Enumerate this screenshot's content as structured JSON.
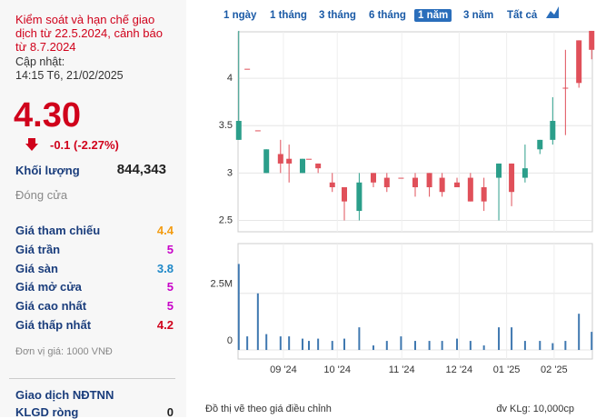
{
  "panel": {
    "warning": "Kiểm soát và hạn chế giao dịch từ 22.5.2024, cảnh báo từ 8.7.2024",
    "updated_label": "Cập nhật:",
    "updated_time": "14:15 T6, 21/02/2025",
    "price": "4.30",
    "change": "-0.1 (-2.27%)",
    "volume_label": "Khối lượng",
    "volume": "844,343",
    "close_label": "Đóng cửa",
    "rows": [
      {
        "label": "Giá tham chiếu",
        "value": "4.4",
        "color": "#f39c12"
      },
      {
        "label": "Giá trần",
        "value": "5",
        "color": "#c800c8"
      },
      {
        "label": "Giá sàn",
        "value": "3.8",
        "color": "#1e88c8"
      },
      {
        "label": "Giá mở cửa",
        "value": "5",
        "color": "#c800c8"
      },
      {
        "label": "Giá cao nhất",
        "value": "5",
        "color": "#c800c8"
      },
      {
        "label": "Giá thấp nhất",
        "value": "4.2",
        "color": "#d0021b"
      }
    ],
    "unit_note": "Đơn vị giá: 1000 VNĐ",
    "foreign_title": "Giao dịch NĐTNN",
    "foreign_label": "KLGD ròng",
    "foreign_value": "0"
  },
  "tabs": {
    "items": [
      "1 ngày",
      "1 tháng",
      "3 tháng",
      "6 tháng",
      "1 năm",
      "3 năm",
      "Tất cả"
    ],
    "active": 4
  },
  "chart_data": {
    "type": "candlestick",
    "x": [
      0.1,
      1.3,
      2.8,
      4.0,
      6.0,
      7.2,
      9.1,
      10.0,
      11.3,
      13.3,
      15.0,
      17.1,
      19.1,
      21.0,
      23.0,
      25.0,
      27.0,
      28.8,
      30.9,
      32.8,
      34.7,
      36.8,
      38.6,
      40.5,
      42.6,
      44.4,
      46.2,
      48.1,
      49.9
    ],
    "open": [
      3.35,
      4.1,
      3.45,
      3.0,
      3.2,
      3.15,
      3.0,
      3.15,
      3.1,
      2.9,
      2.85,
      2.6,
      3.0,
      2.95,
      2.95,
      2.95,
      3.0,
      2.95,
      2.9,
      2.95,
      2.85,
      2.95,
      3.1,
      2.95,
      3.25,
      3.35,
      3.9,
      4.4,
      4.5
    ],
    "high": [
      4.5,
      4.1,
      3.45,
      3.25,
      3.35,
      3.3,
      3.15,
      3.15,
      3.1,
      3.0,
      2.85,
      3.0,
      3.0,
      3.0,
      2.95,
      3.0,
      3.0,
      3.0,
      2.95,
      3.0,
      2.95,
      3.1,
      3.1,
      3.3,
      3.35,
      3.8,
      4.3,
      4.4,
      4.5
    ],
    "low": [
      3.35,
      4.1,
      3.45,
      3.0,
      3.0,
      2.9,
      3.0,
      3.15,
      3.0,
      2.8,
      2.5,
      2.5,
      2.85,
      2.8,
      2.95,
      2.75,
      2.75,
      2.75,
      2.85,
      2.7,
      2.6,
      2.5,
      2.65,
      2.9,
      3.2,
      3.3,
      3.4,
      3.9,
      4.2
    ],
    "close": [
      3.55,
      4.1,
      3.45,
      3.25,
      3.1,
      3.1,
      3.15,
      3.15,
      3.05,
      2.85,
      2.7,
      2.9,
      2.9,
      2.85,
      2.95,
      2.85,
      2.85,
      2.8,
      2.85,
      2.7,
      2.7,
      3.1,
      2.8,
      3.05,
      3.35,
      3.55,
      3.9,
      3.95,
      4.3
    ],
    "volume": [
      3800000,
      600000,
      2500000,
      700000,
      600000,
      600000,
      500000,
      400000,
      500000,
      400000,
      500000,
      1000000,
      200000,
      400000,
      600000,
      400000,
      400000,
      400000,
      500000,
      400000,
      200000,
      1000000,
      1000000,
      400000,
      400000,
      300000,
      400000,
      1600000,
      800000
    ],
    "up_color": "#2b9e8a",
    "down_color": "#e0505a",
    "volume_color": "#3f78b0",
    "xlim": [
      0,
      50
    ],
    "xticks": [
      {
        "value": 6.4,
        "label": "09 '24"
      },
      {
        "value": 14.0,
        "label": "10 '24"
      },
      {
        "value": 23.1,
        "label": "11 '24"
      },
      {
        "value": 31.2,
        "label": "12 '24"
      },
      {
        "value": 37.9,
        "label": "01 '25"
      },
      {
        "value": 44.6,
        "label": "02 '25"
      }
    ],
    "ylim": [
      2.38,
      4.49
    ],
    "yticks": [
      2.5,
      3,
      3.5,
      4
    ],
    "y2lim": [
      -400000,
      4700000
    ],
    "y2ticks": [
      0,
      {
        "value": 2500000,
        "label": "2.5M"
      }
    ],
    "grid": true,
    "note": "Đồ thị vẽ theo giá điều chỉnh",
    "volume_unit": "đv KLg: 10,000cp"
  }
}
